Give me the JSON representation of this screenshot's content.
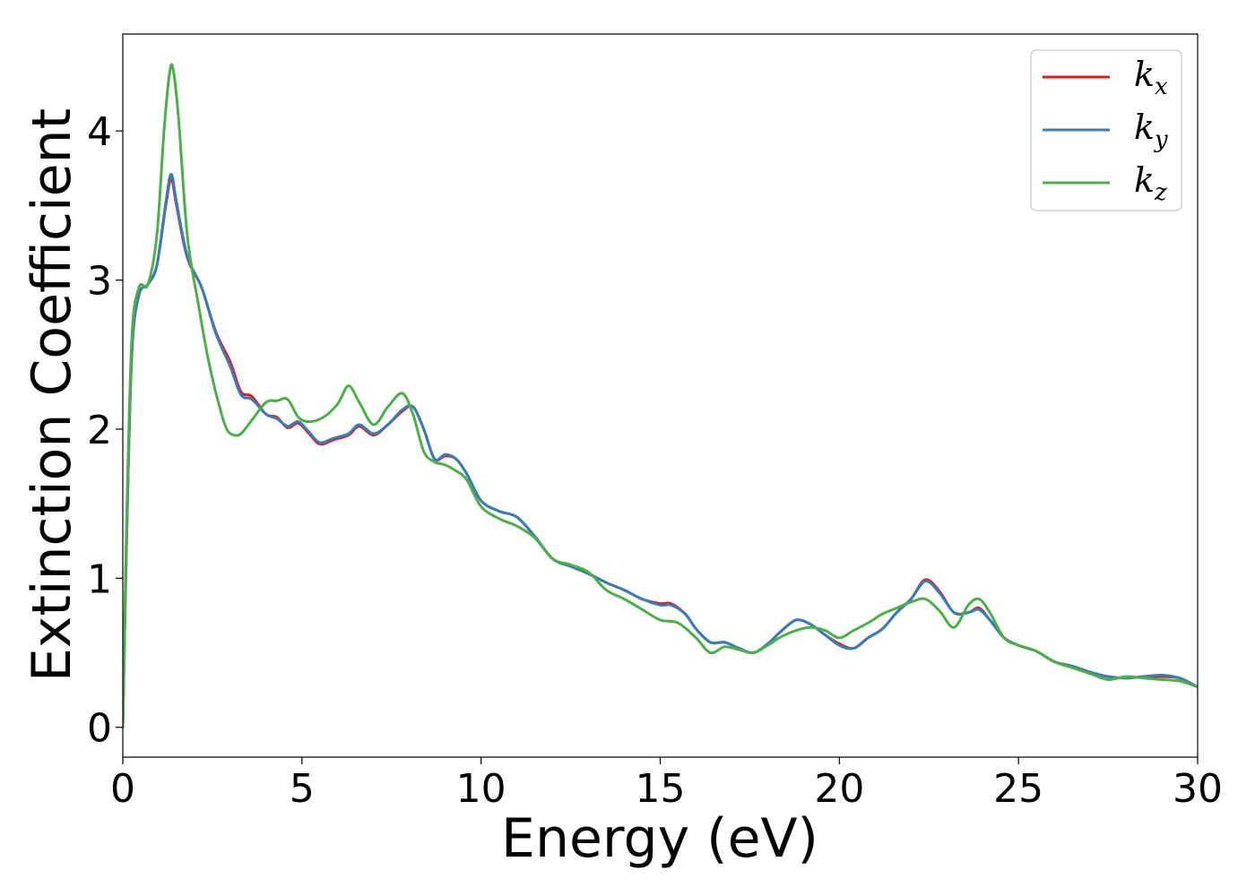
{
  "chart_data": {
    "type": "line",
    "title": "",
    "xlabel": "Energy (eV)",
    "ylabel": "Extinction Coefficient",
    "xlim": [
      0,
      30
    ],
    "ylim": [
      -0.2,
      4.65
    ],
    "xticks": [
      0,
      5,
      10,
      15,
      20,
      25,
      30
    ],
    "xtick_labels": [
      "0",
      "5",
      "10",
      "15",
      "20",
      "25",
      "30"
    ],
    "yticks": [
      0,
      1,
      2,
      3,
      4
    ],
    "ytick_labels": [
      "0",
      "1",
      "2",
      "3",
      "4"
    ],
    "grid": false,
    "legend_position": "top-right",
    "series": [
      {
        "name": "k",
        "subscript": "x",
        "color": "#e41a1c",
        "x": [
          0,
          0.1,
          0.25,
          0.45,
          0.7,
          0.95,
          1.2,
          1.35,
          1.5,
          1.8,
          2.2,
          2.6,
          3.0,
          3.3,
          3.6,
          4.0,
          4.3,
          4.6,
          4.9,
          5.2,
          5.5,
          5.9,
          6.3,
          6.6,
          7.0,
          7.4,
          7.8,
          8.1,
          8.4,
          8.7,
          9.0,
          9.3,
          9.6,
          10.0,
          10.5,
          11.0,
          11.5,
          12.0,
          12.5,
          13.0,
          13.5,
          14.0,
          14.5,
          15.0,
          15.3,
          15.7,
          16.0,
          16.4,
          16.8,
          17.2,
          17.6,
          18.0,
          18.4,
          18.8,
          19.2,
          19.6,
          20.0,
          20.4,
          20.8,
          21.2,
          21.6,
          22.0,
          22.4,
          22.8,
          23.2,
          23.6,
          23.9,
          24.2,
          24.6,
          25.0,
          25.5,
          26.0,
          26.5,
          27.0,
          27.5,
          28.0,
          28.5,
          29.0,
          29.5,
          30.0
        ],
        "values": [
          0.0,
          1.2,
          2.5,
          2.9,
          2.97,
          3.1,
          3.5,
          3.68,
          3.5,
          3.15,
          2.95,
          2.65,
          2.45,
          2.25,
          2.22,
          2.1,
          2.08,
          2.01,
          2.04,
          1.97,
          1.9,
          1.93,
          1.96,
          2.02,
          1.96,
          2.03,
          2.12,
          2.15,
          2.0,
          1.8,
          1.82,
          1.8,
          1.7,
          1.52,
          1.45,
          1.41,
          1.28,
          1.13,
          1.08,
          1.03,
          0.97,
          0.92,
          0.86,
          0.83,
          0.83,
          0.76,
          0.66,
          0.57,
          0.57,
          0.53,
          0.5,
          0.56,
          0.65,
          0.72,
          0.69,
          0.62,
          0.56,
          0.53,
          0.6,
          0.66,
          0.77,
          0.86,
          0.99,
          0.91,
          0.77,
          0.77,
          0.8,
          0.72,
          0.6,
          0.55,
          0.51,
          0.44,
          0.41,
          0.37,
          0.34,
          0.33,
          0.34,
          0.34,
          0.33,
          0.27
        ]
      },
      {
        "name": "k",
        "subscript": "y",
        "color": "#377eb8",
        "x": [
          0,
          0.1,
          0.25,
          0.45,
          0.7,
          0.95,
          1.2,
          1.35,
          1.5,
          1.8,
          2.2,
          2.6,
          3.0,
          3.3,
          3.6,
          4.0,
          4.3,
          4.6,
          4.9,
          5.2,
          5.5,
          5.9,
          6.3,
          6.6,
          7.0,
          7.4,
          7.8,
          8.1,
          8.4,
          8.7,
          9.0,
          9.3,
          9.6,
          10.0,
          10.5,
          11.0,
          11.5,
          12.0,
          12.5,
          13.0,
          13.5,
          14.0,
          14.5,
          15.0,
          15.3,
          15.7,
          16.0,
          16.4,
          16.8,
          17.2,
          17.6,
          18.0,
          18.4,
          18.8,
          19.2,
          19.6,
          20.0,
          20.4,
          20.8,
          21.2,
          21.6,
          22.0,
          22.4,
          22.8,
          23.2,
          23.6,
          23.9,
          24.2,
          24.6,
          25.0,
          25.5,
          26.0,
          26.5,
          27.0,
          27.5,
          28.0,
          28.5,
          29.0,
          29.5,
          30.0
        ],
        "values": [
          0.0,
          1.2,
          2.5,
          2.9,
          2.97,
          3.1,
          3.52,
          3.71,
          3.52,
          3.16,
          2.95,
          2.64,
          2.42,
          2.23,
          2.2,
          2.1,
          2.07,
          2.02,
          2.05,
          1.98,
          1.91,
          1.94,
          1.97,
          2.03,
          1.97,
          2.03,
          2.13,
          2.15,
          2.0,
          1.8,
          1.83,
          1.8,
          1.7,
          1.52,
          1.45,
          1.41,
          1.28,
          1.13,
          1.08,
          1.03,
          0.97,
          0.92,
          0.86,
          0.82,
          0.82,
          0.76,
          0.66,
          0.57,
          0.57,
          0.53,
          0.5,
          0.56,
          0.65,
          0.72,
          0.69,
          0.62,
          0.55,
          0.53,
          0.6,
          0.66,
          0.77,
          0.86,
          0.98,
          0.9,
          0.77,
          0.77,
          0.79,
          0.72,
          0.6,
          0.55,
          0.51,
          0.44,
          0.41,
          0.37,
          0.34,
          0.33,
          0.34,
          0.35,
          0.33,
          0.27
        ]
      },
      {
        "name": "k",
        "subscript": "z",
        "color": "#4daf4a",
        "x": [
          0,
          0.1,
          0.25,
          0.45,
          0.7,
          0.95,
          1.15,
          1.3,
          1.4,
          1.55,
          1.8,
          2.1,
          2.4,
          2.7,
          2.9,
          3.1,
          3.3,
          3.6,
          4.0,
          4.3,
          4.6,
          4.9,
          5.2,
          5.6,
          6.0,
          6.3,
          6.6,
          7.0,
          7.4,
          7.8,
          8.1,
          8.4,
          8.7,
          9.0,
          9.3,
          9.6,
          10.0,
          10.5,
          11.0,
          11.5,
          12.0,
          12.5,
          13.0,
          13.5,
          14.0,
          14.5,
          15.0,
          15.5,
          16.0,
          16.4,
          16.8,
          17.2,
          17.6,
          18.0,
          18.4,
          18.8,
          19.2,
          19.6,
          20.0,
          20.4,
          20.8,
          21.2,
          21.6,
          22.0,
          22.4,
          22.8,
          23.2,
          23.6,
          23.9,
          24.2,
          24.6,
          25.0,
          25.5,
          26.0,
          26.5,
          27.0,
          27.5,
          28.0,
          28.5,
          29.0,
          29.5,
          30.0
        ],
        "values": [
          0.0,
          1.3,
          2.6,
          2.95,
          2.97,
          3.3,
          4.0,
          4.38,
          4.42,
          4.1,
          3.3,
          2.85,
          2.45,
          2.15,
          2.0,
          1.96,
          1.97,
          2.06,
          2.18,
          2.19,
          2.2,
          2.08,
          2.05,
          2.08,
          2.17,
          2.29,
          2.18,
          2.03,
          2.15,
          2.24,
          2.1,
          1.85,
          1.78,
          1.76,
          1.72,
          1.66,
          1.48,
          1.4,
          1.35,
          1.27,
          1.13,
          1.09,
          1.04,
          0.92,
          0.86,
          0.79,
          0.72,
          0.7,
          0.6,
          0.5,
          0.54,
          0.52,
          0.5,
          0.55,
          0.61,
          0.65,
          0.67,
          0.65,
          0.6,
          0.65,
          0.7,
          0.76,
          0.8,
          0.84,
          0.86,
          0.78,
          0.67,
          0.82,
          0.86,
          0.77,
          0.6,
          0.55,
          0.51,
          0.44,
          0.4,
          0.36,
          0.32,
          0.34,
          0.33,
          0.32,
          0.31,
          0.27
        ]
      }
    ]
  }
}
